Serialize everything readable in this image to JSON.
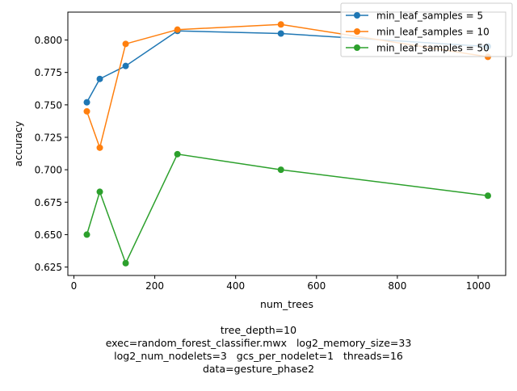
{
  "chart_data": {
    "type": "line",
    "xlabel": "num_trees",
    "ylabel": "accuracy",
    "xlim": [
      -15,
      1068
    ],
    "ylim": [
      0.6185,
      0.8215
    ],
    "xticks": [
      0,
      200,
      400,
      600,
      800,
      1000
    ],
    "yticks": [
      0.625,
      0.65,
      0.675,
      0.7,
      0.725,
      0.75,
      0.775,
      0.8
    ],
    "ytick_labels": [
      "0.625",
      "0.650",
      "0.675",
      "0.700",
      "0.725",
      "0.750",
      "0.775",
      "0.800"
    ],
    "grid": false,
    "legend_position": "top-right",
    "x": [
      32,
      64,
      128,
      256,
      512,
      1024
    ],
    "series": [
      {
        "name": "min_leaf_samples = 5",
        "color": "#1f77b4",
        "values": [
          0.752,
          0.77,
          0.78,
          0.807,
          0.805,
          0.795
        ]
      },
      {
        "name": "min_leaf_samples = 10",
        "color": "#ff7f0e",
        "values": [
          0.745,
          0.717,
          0.797,
          0.808,
          0.812,
          0.787
        ]
      },
      {
        "name": "min_leaf_samples = 50",
        "color": "#2ca02c",
        "values": [
          0.65,
          0.683,
          0.628,
          0.712,
          0.7,
          0.68
        ]
      }
    ]
  },
  "caption": {
    "line1": "tree_depth=10",
    "line2": "exec=random_forest_classifier.mwx   log2_memory_size=33",
    "line3": "log2_num_nodelets=3   gcs_per_nodelet=1   threads=16",
    "line4": "data=gesture_phase2"
  }
}
